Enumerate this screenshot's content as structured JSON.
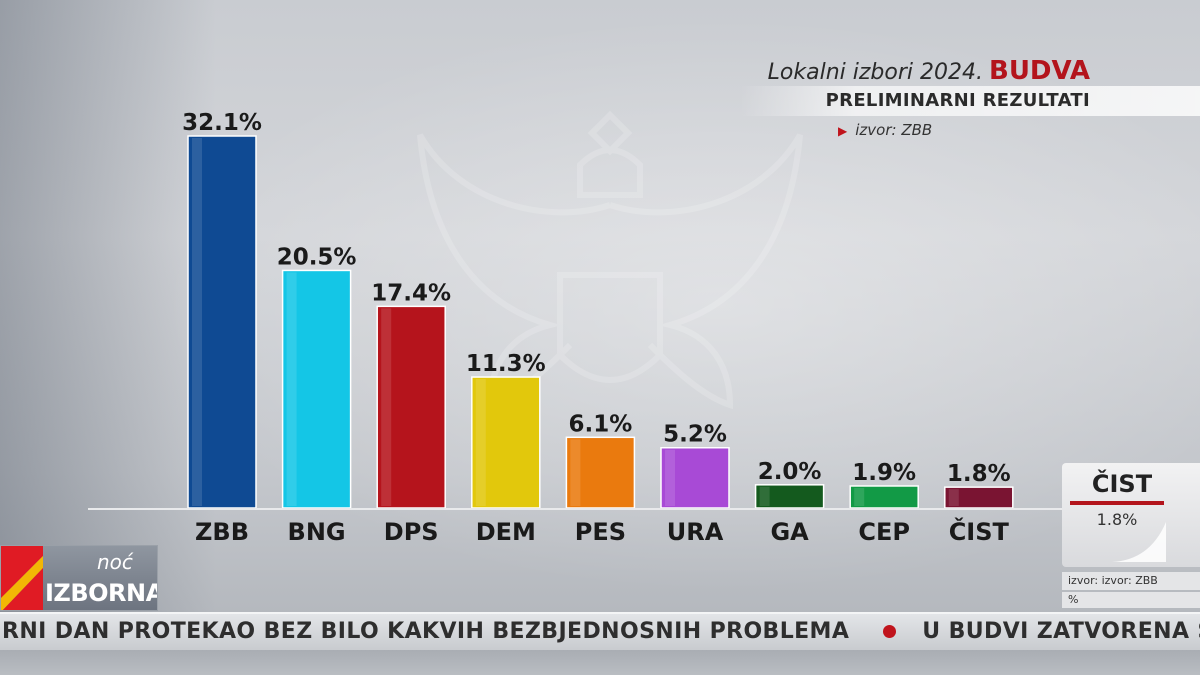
{
  "header": {
    "election": "Lokalni izbori 2024.",
    "city": "BUDVA",
    "subtitle": "PRELIMINARNI REZULTATI",
    "source": "izvor: ZBB"
  },
  "chart_data": {
    "type": "bar",
    "categories": [
      "ZBB",
      "BNG",
      "DPS",
      "DEM",
      "PES",
      "URA",
      "GA",
      "CEP",
      "ČIST"
    ],
    "values": [
      32.1,
      20.5,
      17.4,
      11.3,
      6.1,
      5.2,
      2.0,
      1.9,
      1.8
    ],
    "labels": [
      "32.1%",
      "20.5%",
      "17.4%",
      "11.3%",
      "6.1%",
      "5.2%",
      "2.0%",
      "1.9%",
      "1.8%"
    ],
    "colors": [
      "#0f4a93",
      "#14c6e6",
      "#b5141c",
      "#e2c80c",
      "#ea7a0e",
      "#a84ad6",
      "#145a1e",
      "#129a46",
      "#7a1432"
    ],
    "title": "",
    "xlabel": "",
    "ylabel": "",
    "ylim": [
      0,
      32.1
    ],
    "grid": false,
    "legend": "none"
  },
  "side_panel": {
    "party": "ČIST",
    "value": "1.8%",
    "source": "izvor: izvor: ZBB",
    "unit": "%"
  },
  "logo": {
    "line1": "noć",
    "line2": "IZBORNA"
  },
  "ticker": {
    "item1": "RNI DAN PROTEKAO BEZ BILO KAKVIH BEZBJEDNOSNIH PROBLEMA",
    "item2": "U BUDVI ZATVORENA SVA B"
  },
  "colors": {
    "accent_red": "#b3141c"
  }
}
